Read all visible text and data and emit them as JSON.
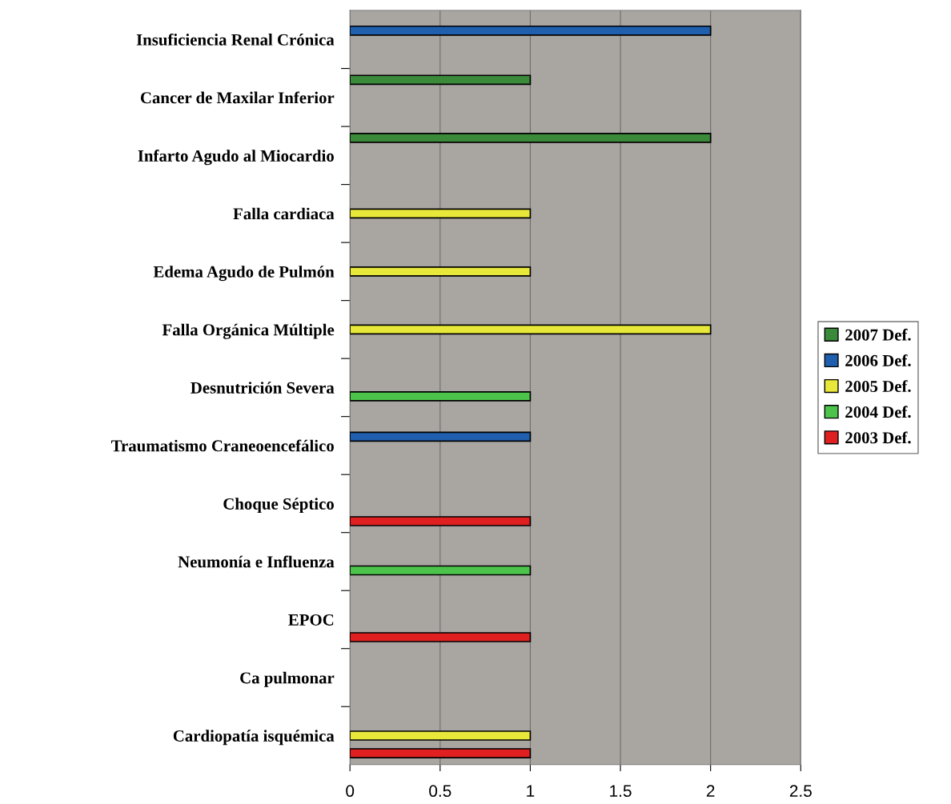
{
  "chart_data": {
    "type": "bar",
    "orientation": "horizontal",
    "categories": [
      "Insuficiencia Renal Crónica",
      "Cancer de Maxilar Inferior",
      "Infarto Agudo al Miocardio",
      "Falla cardiaca",
      "Edema Agudo de Pulmón",
      "Falla Orgánica Múltiple",
      "Desnutrición Severa",
      "Traumatismo Craneoencefálico",
      "Choque Séptico",
      "Neumonía e Influenza",
      "EPOC",
      "Ca pulmonar",
      "Cardiopatía isquémica"
    ],
    "series": [
      {
        "name": "2007 Def.",
        "color": "#3a8a3a",
        "values": [
          null,
          1,
          2,
          null,
          null,
          null,
          null,
          null,
          null,
          null,
          null,
          null,
          null
        ]
      },
      {
        "name": "2006 Def.",
        "color": "#1f5fae",
        "values": [
          2,
          null,
          null,
          null,
          null,
          null,
          null,
          1,
          null,
          null,
          null,
          null,
          null
        ]
      },
      {
        "name": "2005 Def.",
        "color": "#e8e83a",
        "values": [
          null,
          null,
          null,
          1,
          1,
          2,
          null,
          null,
          null,
          null,
          null,
          null,
          1
        ]
      },
      {
        "name": "2004 Def.",
        "color": "#4cc44c",
        "values": [
          null,
          null,
          null,
          null,
          null,
          null,
          1,
          null,
          null,
          1,
          null,
          null,
          null
        ]
      },
      {
        "name": "2003 Def.",
        "color": "#e02020",
        "values": [
          null,
          null,
          null,
          null,
          null,
          null,
          null,
          null,
          1,
          null,
          1,
          null,
          1
        ]
      }
    ],
    "xlim": [
      0,
      2.5
    ],
    "xticks": [
      0,
      0.5,
      1,
      1.5,
      2,
      2.5
    ],
    "grid": "x",
    "legend": "right"
  }
}
